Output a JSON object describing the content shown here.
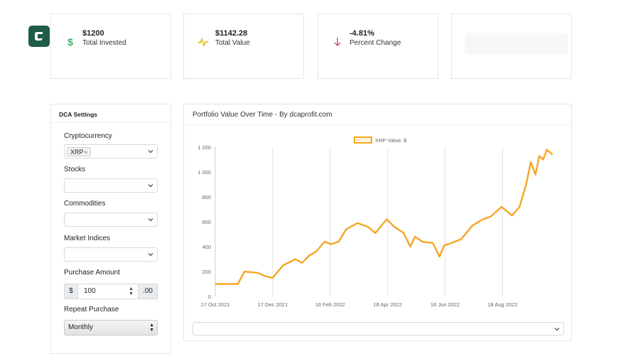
{
  "cards": [
    {
      "value": "$1200",
      "label": "Total Invested",
      "icon": "dollar-icon",
      "color": "#3cae6c"
    },
    {
      "value": "$1142.28",
      "label": "Total Value",
      "icon": "pulse-icon",
      "color": "#e0b400"
    },
    {
      "value": "-4.81%",
      "label": "Percent Change",
      "icon": "arrow-down-icon",
      "color": "#d34b62"
    }
  ],
  "settings": {
    "title": "DCA Settings",
    "crypto_label": "Cryptocurrency",
    "crypto_tag": "XRP",
    "stocks_label": "Stocks",
    "commodities_label": "Commodities",
    "indices_label": "Market Indices",
    "amount_label": "Purchase Amount",
    "amount_prefix": "$",
    "amount_value": "100",
    "amount_suffix": ".00",
    "repeat_label": "Repeat Purchase",
    "repeat_value": "Monthly"
  },
  "chart": {
    "title": "Portfolio Value Over Time - By dcaprofit.com"
  },
  "chart_data": {
    "type": "line",
    "legend": "XRP Value: $",
    "legend_position": "top",
    "line_color": "#f5a623",
    "grid_x": true,
    "grid_y": false,
    "ylim": [
      0,
      1200
    ],
    "yticks": [
      "0",
      "200",
      "400",
      "600",
      "800",
      "1 000",
      "1 200"
    ],
    "xticks": [
      "17 Oct 2021",
      "17 Dec 2021",
      "16 Feb 2022",
      "18 Apr 2022",
      "18 Jun 2022",
      "18 Aug 2022"
    ],
    "x": [
      "2021-10-17",
      "2021-11-01",
      "2021-11-10",
      "2021-11-17",
      "2021-12-01",
      "2021-12-10",
      "2021-12-17",
      "2021-12-28",
      "2022-01-10",
      "2022-01-17",
      "2022-01-25",
      "2022-02-01",
      "2022-02-10",
      "2022-02-17",
      "2022-02-25",
      "2022-03-05",
      "2022-03-17",
      "2022-03-28",
      "2022-04-05",
      "2022-04-17",
      "2022-04-25",
      "2022-05-05",
      "2022-05-12",
      "2022-05-17",
      "2022-05-25",
      "2022-06-05",
      "2022-06-12",
      "2022-06-17",
      "2022-06-25",
      "2022-07-05",
      "2022-07-17",
      "2022-07-28",
      "2022-08-05",
      "2022-08-17",
      "2022-08-28",
      "2022-09-05",
      "2022-09-12",
      "2022-09-17",
      "2022-09-22",
      "2022-09-26",
      "2022-09-30",
      "2022-10-04",
      "2022-10-10"
    ],
    "values": [
      100,
      100,
      100,
      200,
      190,
      160,
      150,
      250,
      300,
      270,
      330,
      360,
      440,
      420,
      440,
      540,
      590,
      560,
      510,
      620,
      560,
      510,
      400,
      480,
      440,
      430,
      320,
      410,
      430,
      460,
      570,
      620,
      640,
      720,
      650,
      720,
      900,
      1080,
      980,
      1130,
      1100,
      1180,
      1140
    ]
  }
}
